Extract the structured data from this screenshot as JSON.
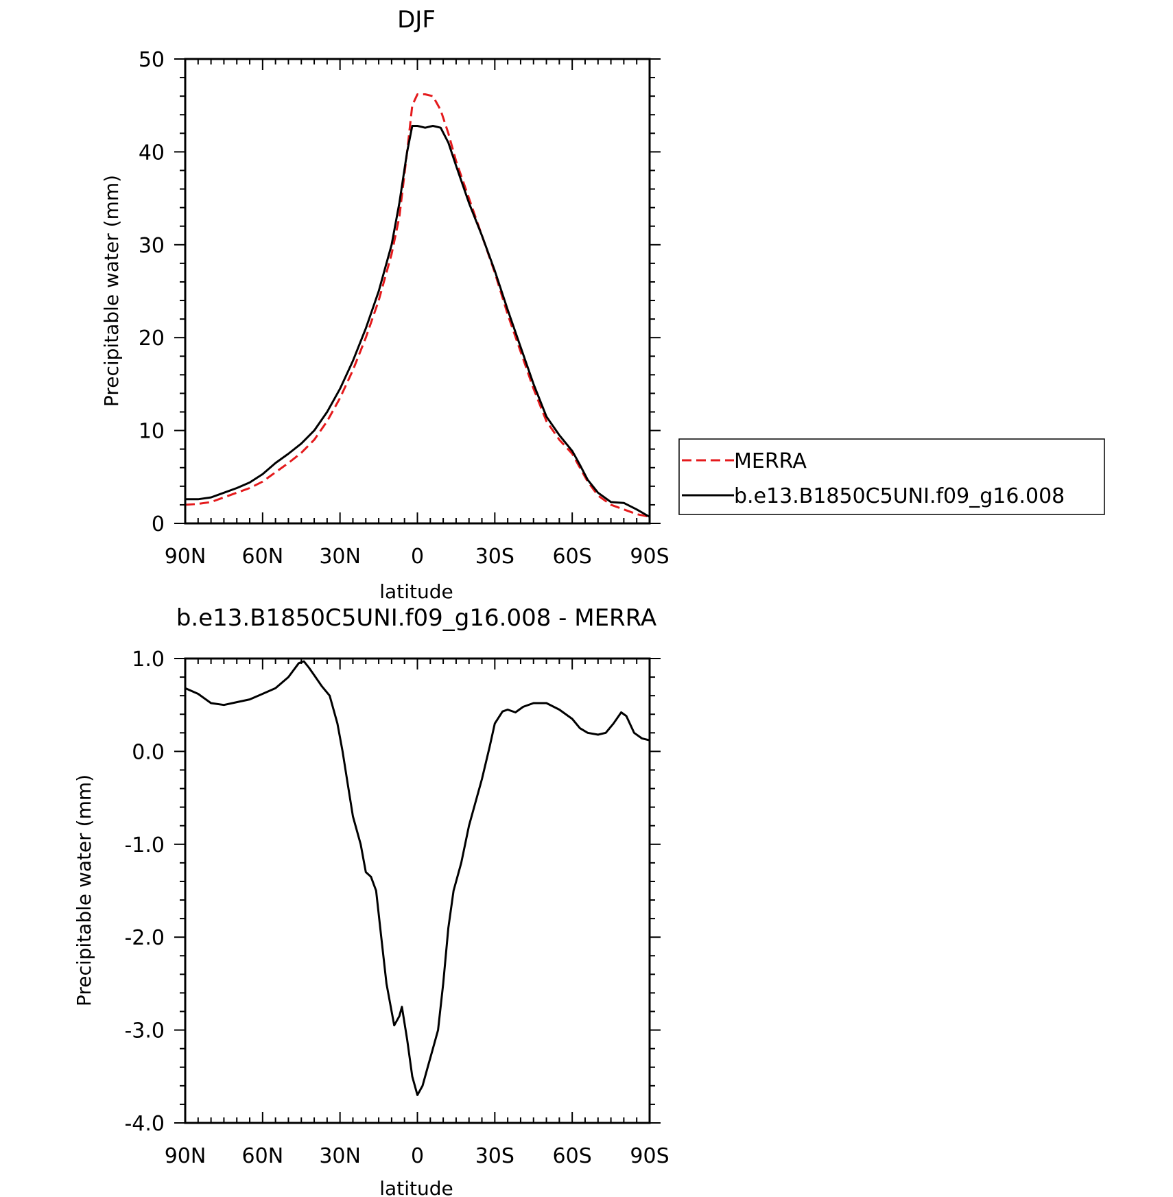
{
  "chart_data": [
    {
      "type": "line",
      "title": "DJF",
      "xlabel": "latitude",
      "ylabel": "Precipitable water (mm)",
      "xlim": [
        90,
        -90
      ],
      "ylim": [
        0,
        50
      ],
      "x_tick_values": [
        90,
        60,
        30,
        0,
        -30,
        -60,
        -90
      ],
      "x_tick_labels": [
        "90N",
        "60N",
        "30N",
        "0",
        "30S",
        "60S",
        "90S"
      ],
      "y_tick_values": [
        0,
        10,
        20,
        30,
        40,
        50
      ],
      "y_tick_labels": [
        "0",
        "10",
        "20",
        "30",
        "40",
        "50"
      ],
      "grid": false,
      "legend": "right",
      "series": [
        {
          "name": "MERRA",
          "color": "#e41a1c",
          "dash": "dashed",
          "points": [
            [
              90,
              2.0
            ],
            [
              85,
              2.1
            ],
            [
              80,
              2.3
            ],
            [
              75,
              2.8
            ],
            [
              70,
              3.3
            ],
            [
              65,
              3.8
            ],
            [
              60,
              4.5
            ],
            [
              55,
              5.5
            ],
            [
              50,
              6.5
            ],
            [
              45,
              7.6
            ],
            [
              40,
              9.0
            ],
            [
              35,
              11.0
            ],
            [
              30,
              13.5
            ],
            [
              25,
              16.5
            ],
            [
              20,
              20.0
            ],
            [
              15,
              24.0
            ],
            [
              10,
              29.0
            ],
            [
              7,
              33.0
            ],
            [
              4,
              40.0
            ],
            [
              2,
              45.0
            ],
            [
              0,
              46.2
            ],
            [
              -3,
              46.2
            ],
            [
              -6,
              46.0
            ],
            [
              -9,
              44.5
            ],
            [
              -12,
              42.0
            ],
            [
              -15,
              39.0
            ],
            [
              -20,
              35.0
            ],
            [
              -25,
              31.0
            ],
            [
              -30,
              27.0
            ],
            [
              -35,
              22.5
            ],
            [
              -40,
              18.5
            ],
            [
              -45,
              14.5
            ],
            [
              -50,
              11.0
            ],
            [
              -55,
              9.0
            ],
            [
              -60,
              7.5
            ],
            [
              -63,
              6.0
            ],
            [
              -66,
              4.5
            ],
            [
              -70,
              3.0
            ],
            [
              -75,
              2.0
            ],
            [
              -80,
              1.5
            ],
            [
              -85,
              1.0
            ],
            [
              -90,
              0.7
            ]
          ]
        },
        {
          "name": "b.e13.B1850C5UNI.f09_g16.008",
          "color": "#000000",
          "dash": "solid",
          "points": [
            [
              90,
              2.6
            ],
            [
              85,
              2.6
            ],
            [
              80,
              2.8
            ],
            [
              75,
              3.3
            ],
            [
              70,
              3.8
            ],
            [
              65,
              4.4
            ],
            [
              60,
              5.3
            ],
            [
              55,
              6.5
            ],
            [
              50,
              7.5
            ],
            [
              45,
              8.6
            ],
            [
              40,
              10.0
            ],
            [
              35,
              12.0
            ],
            [
              30,
              14.5
            ],
            [
              25,
              17.5
            ],
            [
              20,
              21.0
            ],
            [
              15,
              25.0
            ],
            [
              10,
              30.0
            ],
            [
              7,
              34.5
            ],
            [
              4,
              40.0
            ],
            [
              2,
              42.8
            ],
            [
              0,
              42.8
            ],
            [
              -3,
              42.6
            ],
            [
              -6,
              42.8
            ],
            [
              -9,
              42.6
            ],
            [
              -12,
              41.0
            ],
            [
              -15,
              38.5
            ],
            [
              -20,
              34.5
            ],
            [
              -25,
              31.0
            ],
            [
              -30,
              27.2
            ],
            [
              -35,
              23.0
            ],
            [
              -40,
              19.0
            ],
            [
              -45,
              15.0
            ],
            [
              -50,
              11.5
            ],
            [
              -55,
              9.5
            ],
            [
              -60,
              7.8
            ],
            [
              -63,
              6.3
            ],
            [
              -66,
              4.7
            ],
            [
              -70,
              3.3
            ],
            [
              -75,
              2.3
            ],
            [
              -80,
              2.2
            ],
            [
              -85,
              1.5
            ],
            [
              -90,
              0.7
            ]
          ]
        }
      ]
    },
    {
      "type": "line",
      "title": "b.e13.B1850C5UNI.f09_g16.008 - MERRA",
      "xlabel": "latitude",
      "ylabel": "Precipitable water (mm)",
      "xlim": [
        90,
        -90
      ],
      "ylim": [
        -4,
        1
      ],
      "x_tick_values": [
        90,
        60,
        30,
        0,
        -30,
        -60,
        -90
      ],
      "x_tick_labels": [
        "90N",
        "60N",
        "30N",
        "0",
        "30S",
        "60S",
        "90S"
      ],
      "y_tick_values": [
        -4,
        -3,
        -2,
        -1,
        0,
        1
      ],
      "y_tick_labels": [
        "-4.0",
        "-3.0",
        "-2.0",
        "-1.0",
        "0.0",
        "1.0"
      ],
      "grid": false,
      "series": [
        {
          "color": "#000000",
          "dash": "solid",
          "points": [
            [
              90,
              0.68
            ],
            [
              85,
              0.62
            ],
            [
              80,
              0.52
            ],
            [
              75,
              0.5
            ],
            [
              70,
              0.53
            ],
            [
              65,
              0.56
            ],
            [
              60,
              0.62
            ],
            [
              55,
              0.68
            ],
            [
              50,
              0.8
            ],
            [
              46,
              0.95
            ],
            [
              44,
              0.97
            ],
            [
              42,
              0.9
            ],
            [
              40,
              0.82
            ],
            [
              37,
              0.7
            ],
            [
              34,
              0.6
            ],
            [
              31,
              0.3
            ],
            [
              29,
              0.0
            ],
            [
              27,
              -0.35
            ],
            [
              25,
              -0.7
            ],
            [
              22,
              -1.0
            ],
            [
              20,
              -1.3
            ],
            [
              18,
              -1.35
            ],
            [
              16,
              -1.5
            ],
            [
              14,
              -2.0
            ],
            [
              12,
              -2.5
            ],
            [
              10,
              -2.8
            ],
            [
              9,
              -2.95
            ],
            [
              7,
              -2.85
            ],
            [
              6,
              -2.75
            ],
            [
              4,
              -3.1
            ],
            [
              2,
              -3.5
            ],
            [
              0,
              -3.7
            ],
            [
              -2,
              -3.6
            ],
            [
              -4,
              -3.4
            ],
            [
              -6,
              -3.2
            ],
            [
              -8,
              -3.0
            ],
            [
              -10,
              -2.5
            ],
            [
              -12,
              -1.9
            ],
            [
              -14,
              -1.5
            ],
            [
              -17,
              -1.2
            ],
            [
              -20,
              -0.8
            ],
            [
              -22,
              -0.6
            ],
            [
              -25,
              -0.3
            ],
            [
              -28,
              0.05
            ],
            [
              -30,
              0.3
            ],
            [
              -33,
              0.43
            ],
            [
              -35,
              0.45
            ],
            [
              -38,
              0.42
            ],
            [
              -41,
              0.48
            ],
            [
              -45,
              0.52
            ],
            [
              -50,
              0.52
            ],
            [
              -55,
              0.45
            ],
            [
              -60,
              0.35
            ],
            [
              -63,
              0.25
            ],
            [
              -66,
              0.2
            ],
            [
              -70,
              0.18
            ],
            [
              -73,
              0.2
            ],
            [
              -76,
              0.3
            ],
            [
              -79,
              0.42
            ],
            [
              -81,
              0.38
            ],
            [
              -84,
              0.2
            ],
            [
              -87,
              0.14
            ],
            [
              -90,
              0.12
            ]
          ]
        }
      ]
    }
  ]
}
